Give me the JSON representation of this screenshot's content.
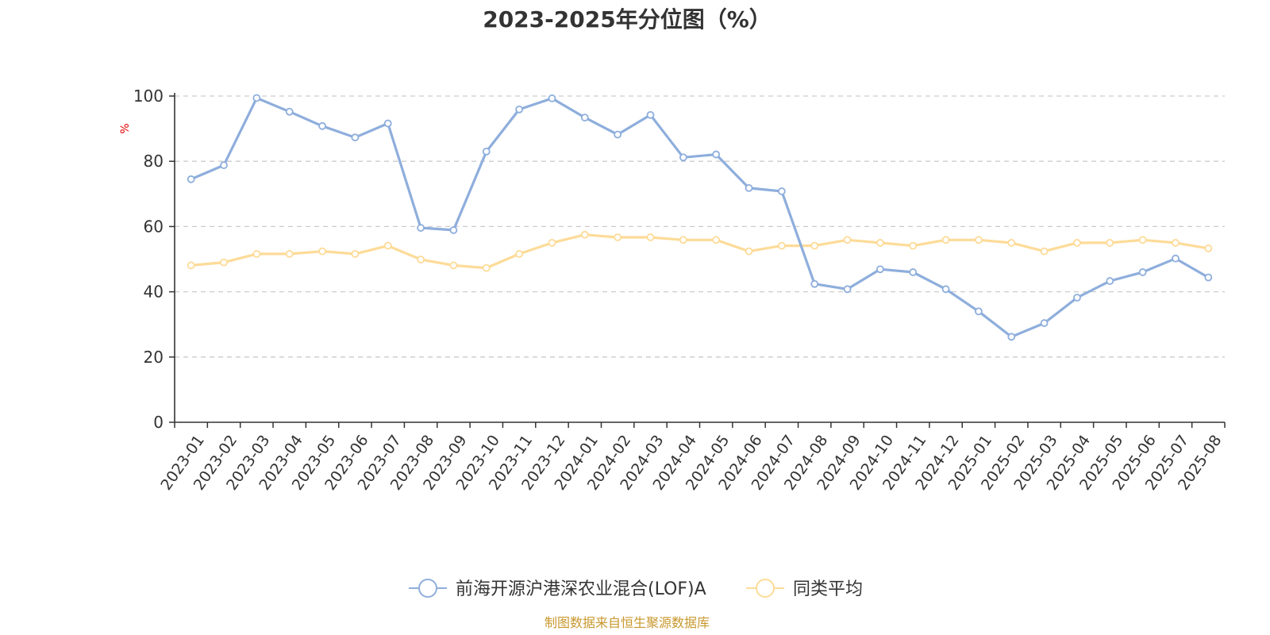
{
  "chart_data": {
    "type": "line",
    "title": "2023-2025年分位图（%）",
    "ylabel": "%",
    "ylim": [
      0,
      100
    ],
    "yticks": [
      0,
      20,
      40,
      60,
      80,
      100
    ],
    "grid": true,
    "legend_position": "bottom",
    "categories": [
      "2023-01",
      "2023-02",
      "2023-03",
      "2023-04",
      "2023-05",
      "2023-06",
      "2023-07",
      "2023-08",
      "2023-09",
      "2023-10",
      "2023-11",
      "2023-12",
      "2024-01",
      "2024-02",
      "2024-03",
      "2024-04",
      "2024-05",
      "2024-06",
      "2024-07",
      "2024-08",
      "2024-09",
      "2024-10",
      "2024-11",
      "2024-12",
      "2025-01",
      "2025-02",
      "2025-03",
      "2025-04",
      "2025-05",
      "2025-06",
      "2025-07",
      "2025-08"
    ],
    "series": [
      {
        "name": "前海开源沪港深农业混合(LOF)A",
        "color": "#8eaedc",
        "values": [
          74.5,
          78.8,
          99.4,
          95.2,
          90.8,
          87.3,
          91.6,
          59.6,
          58.9,
          83.0,
          95.9,
          99.3,
          93.4,
          88.2,
          94.2,
          81.2,
          82.1,
          71.8,
          70.8,
          42.4,
          40.8,
          46.9,
          46.0,
          40.8,
          34.0,
          26.2,
          30.4,
          38.2,
          43.3,
          46.0,
          50.2,
          44.4
        ]
      },
      {
        "name": "同类平均",
        "color": "#fddb98",
        "values": [
          48.1,
          49.0,
          51.6,
          51.6,
          52.4,
          51.6,
          54.1,
          49.9,
          48.1,
          47.3,
          51.6,
          55.0,
          57.5,
          56.7,
          56.7,
          55.9,
          55.9,
          52.4,
          54.1,
          54.1,
          55.9,
          55.0,
          54.1,
          55.9,
          55.9,
          55.0,
          52.4,
          55.0,
          55.0,
          55.9,
          55.0,
          53.3
        ]
      }
    ]
  },
  "footer": {
    "source": "制图数据来自恒生聚源数据库"
  }
}
